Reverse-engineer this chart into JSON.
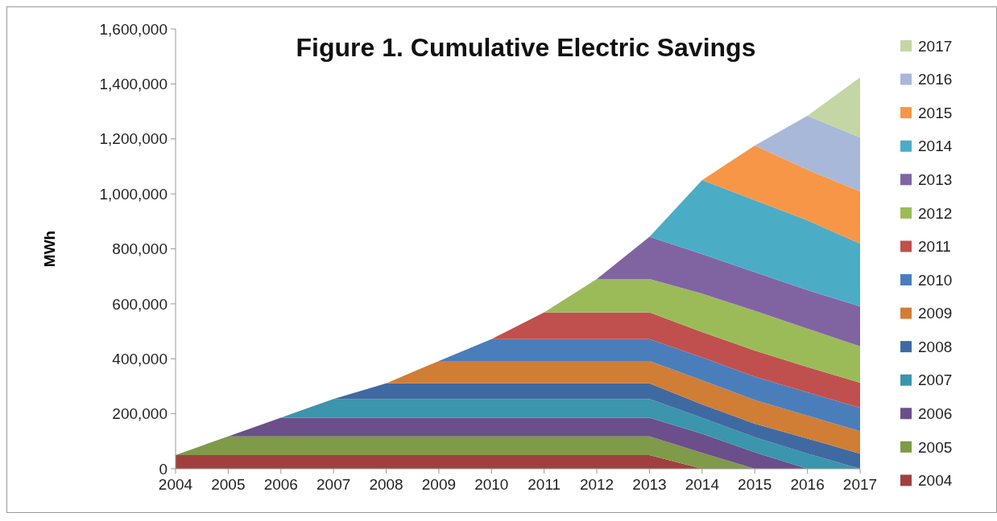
{
  "chart_data": {
    "type": "area",
    "stacked": true,
    "title": "Figure 1. Cumulative  Electric Savings",
    "ylabel": "MWh",
    "categories": [
      "2004",
      "2005",
      "2006",
      "2007",
      "2008",
      "2009",
      "2010",
      "2011",
      "2012",
      "2013",
      "2014",
      "2015",
      "2016",
      "2017"
    ],
    "ylim": [
      0,
      1600000
    ],
    "yticks": [
      0,
      {
        "value": 200000,
        "label": "200,000"
      },
      {
        "value": 400000,
        "label": "400,000"
      },
      {
        "value": 600000,
        "label": "600,000"
      },
      {
        "value": 800000,
        "label": "800,000"
      },
      {
        "value": 1000000,
        "label": "1,000,000"
      },
      {
        "value": 1200000,
        "label": "1,200,000"
      },
      {
        "value": 1400000,
        "label": "1,400,000"
      },
      {
        "value": 1600000,
        "label": "1,600,000"
      }
    ],
    "grid": false,
    "legend": "right",
    "series": [
      {
        "name": "2004",
        "color": "#a0403e",
        "values": [
          50000,
          50000,
          50000,
          50000,
          50000,
          50000,
          50000,
          50000,
          50000,
          50000,
          0,
          0,
          0,
          0
        ]
      },
      {
        "name": "2005",
        "color": "#7f9a48",
        "values": [
          0,
          68000,
          68000,
          68000,
          68000,
          68000,
          68000,
          68000,
          68000,
          68000,
          58000,
          0,
          0,
          0
        ]
      },
      {
        "name": "2006",
        "color": "#6a4f8a",
        "values": [
          0,
          0,
          68000,
          68000,
          68000,
          68000,
          68000,
          68000,
          68000,
          68000,
          69000,
          60000,
          0,
          0
        ]
      },
      {
        "name": "2007",
        "color": "#3a95ad",
        "values": [
          0,
          0,
          0,
          68000,
          68000,
          68000,
          68000,
          68000,
          68000,
          68000,
          58000,
          55000,
          55000,
          0
        ]
      },
      {
        "name": "2008",
        "color": "#3f6aa1",
        "values": [
          0,
          0,
          0,
          0,
          57000,
          57000,
          57000,
          57000,
          57000,
          57000,
          49000,
          49000,
          55000,
          55000
        ]
      },
      {
        "name": "2009",
        "color": "#d07d36",
        "values": [
          0,
          0,
          0,
          0,
          0,
          81000,
          81000,
          81000,
          81000,
          81000,
          88000,
          86000,
          83000,
          82000
        ]
      },
      {
        "name": "2010",
        "color": "#4a7ebb",
        "values": [
          0,
          0,
          0,
          0,
          0,
          0,
          80000,
          80000,
          80000,
          80000,
          83000,
          85000,
          85000,
          85000
        ]
      },
      {
        "name": "2011",
        "color": "#c0504d",
        "values": [
          0,
          0,
          0,
          0,
          0,
          0,
          0,
          97000,
          97000,
          97000,
          92000,
          95000,
          92000,
          91000
        ]
      },
      {
        "name": "2012",
        "color": "#9bbb59",
        "values": [
          0,
          0,
          0,
          0,
          0,
          0,
          0,
          0,
          121000,
          121000,
          140000,
          145000,
          140000,
          132000
        ]
      },
      {
        "name": "2013",
        "color": "#8064a2",
        "values": [
          0,
          0,
          0,
          0,
          0,
          0,
          0,
          0,
          0,
          154000,
          144000,
          140000,
          140000,
          146000
        ]
      },
      {
        "name": "2014",
        "color": "#4bacc6",
        "values": [
          0,
          0,
          0,
          0,
          0,
          0,
          0,
          0,
          0,
          0,
          269000,
          262000,
          254000,
          228000
        ]
      },
      {
        "name": "2015",
        "color": "#f79646",
        "values": [
          0,
          0,
          0,
          0,
          0,
          0,
          0,
          0,
          0,
          0,
          0,
          199000,
          184000,
          190000
        ]
      },
      {
        "name": "2016",
        "color": "#a8b8d8",
        "values": [
          0,
          0,
          0,
          0,
          0,
          0,
          0,
          0,
          0,
          0,
          0,
          0,
          196000,
          196000
        ]
      },
      {
        "name": "2017",
        "color": "#c4d6a4",
        "values": [
          0,
          0,
          0,
          0,
          0,
          0,
          0,
          0,
          0,
          0,
          0,
          0,
          0,
          219000
        ]
      }
    ]
  }
}
